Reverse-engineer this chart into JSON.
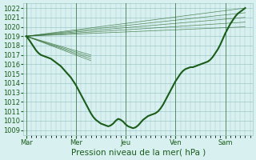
{
  "bg_color": "#d8f0f0",
  "grid_color": "#a0c8c8",
  "line_color": "#1a5c1a",
  "ylim": [
    1008.5,
    1022.5
  ],
  "yticks": [
    1009,
    1010,
    1011,
    1012,
    1013,
    1014,
    1015,
    1016,
    1017,
    1018,
    1019,
    1020,
    1021,
    1022
  ],
  "xlabel": "Pression niveau de la mer( hPa )",
  "xtick_labels": [
    "Mar",
    "Mer",
    "Jeu",
    "Ven",
    "Sam"
  ],
  "xtick_pos": [
    0,
    1,
    2,
    3,
    4
  ],
  "vline_pos": [
    0,
    1,
    2,
    3,
    4
  ],
  "main_line_x": [
    0.0,
    0.05,
    0.1,
    0.15,
    0.2,
    0.25,
    0.3,
    0.35,
    0.4,
    0.45,
    0.5,
    0.55,
    0.6,
    0.65,
    0.7,
    0.75,
    0.8,
    0.85,
    0.9,
    0.95,
    1.0,
    1.05,
    1.1,
    1.15,
    1.2,
    1.25,
    1.3,
    1.35,
    1.4,
    1.45,
    1.5,
    1.55,
    1.6,
    1.65,
    1.7,
    1.75,
    1.8,
    1.85,
    1.9,
    1.95,
    2.0,
    2.05,
    2.1,
    2.15,
    2.2,
    2.25,
    2.3,
    2.35,
    2.4,
    2.45,
    2.5,
    2.55,
    2.6,
    2.65,
    2.7,
    2.75,
    2.8,
    2.85,
    2.9,
    2.95,
    3.0,
    3.05,
    3.1,
    3.15,
    3.2,
    3.25,
    3.3,
    3.35,
    3.4,
    3.45,
    3.5,
    3.55,
    3.6,
    3.65,
    3.7,
    3.75,
    3.8,
    3.85,
    3.9,
    3.95,
    4.0,
    4.05,
    4.1,
    4.15,
    4.2,
    4.25,
    4.3,
    4.35,
    4.4
  ],
  "main_line_y": [
    1019.0,
    1018.7,
    1018.3,
    1017.9,
    1017.5,
    1017.2,
    1017.0,
    1016.9,
    1016.8,
    1016.7,
    1016.6,
    1016.4,
    1016.2,
    1016.0,
    1015.8,
    1015.5,
    1015.2,
    1014.9,
    1014.6,
    1014.2,
    1013.8,
    1013.3,
    1012.8,
    1012.3,
    1011.8,
    1011.3,
    1010.8,
    1010.4,
    1010.1,
    1009.9,
    1009.7,
    1009.6,
    1009.5,
    1009.4,
    1009.5,
    1009.7,
    1010.0,
    1010.2,
    1010.1,
    1009.9,
    1009.6,
    1009.4,
    1009.3,
    1009.2,
    1009.3,
    1009.5,
    1009.8,
    1010.1,
    1010.3,
    1010.5,
    1010.6,
    1010.7,
    1010.8,
    1011.0,
    1011.3,
    1011.7,
    1012.2,
    1012.7,
    1013.2,
    1013.7,
    1014.2,
    1014.6,
    1015.0,
    1015.3,
    1015.5,
    1015.6,
    1015.7,
    1015.7,
    1015.8,
    1015.9,
    1016.0,
    1016.1,
    1016.2,
    1016.3,
    1016.5,
    1016.8,
    1017.2,
    1017.6,
    1018.1,
    1018.7,
    1019.3,
    1019.8,
    1020.3,
    1020.7,
    1021.1,
    1021.4,
    1021.6,
    1021.8,
    1022.0
  ],
  "forecast_lines": [
    {
      "x": [
        0.0,
        4.4
      ],
      "y": [
        1019.0,
        1022.0
      ]
    },
    {
      "x": [
        0.0,
        4.4
      ],
      "y": [
        1019.0,
        1021.5
      ]
    },
    {
      "x": [
        0.0,
        1.3
      ],
      "y": [
        1019.0,
        1017.0
      ]
    },
    {
      "x": [
        0.0,
        4.4
      ],
      "y": [
        1019.0,
        1021.0
      ]
    },
    {
      "x": [
        0.0,
        1.3
      ],
      "y": [
        1019.0,
        1016.8
      ]
    },
    {
      "x": [
        0.0,
        4.4
      ],
      "y": [
        1019.0,
        1020.5
      ]
    },
    {
      "x": [
        0.0,
        1.3
      ],
      "y": [
        1019.0,
        1016.6
      ]
    },
    {
      "x": [
        0.0,
        4.4
      ],
      "y": [
        1019.0,
        1020.0
      ]
    },
    {
      "x": [
        0.0,
        1.3
      ],
      "y": [
        1019.0,
        1016.4
      ]
    }
  ],
  "title_fontsize": 7,
  "tick_fontsize": 6,
  "xlabel_fontsize": 7.5
}
